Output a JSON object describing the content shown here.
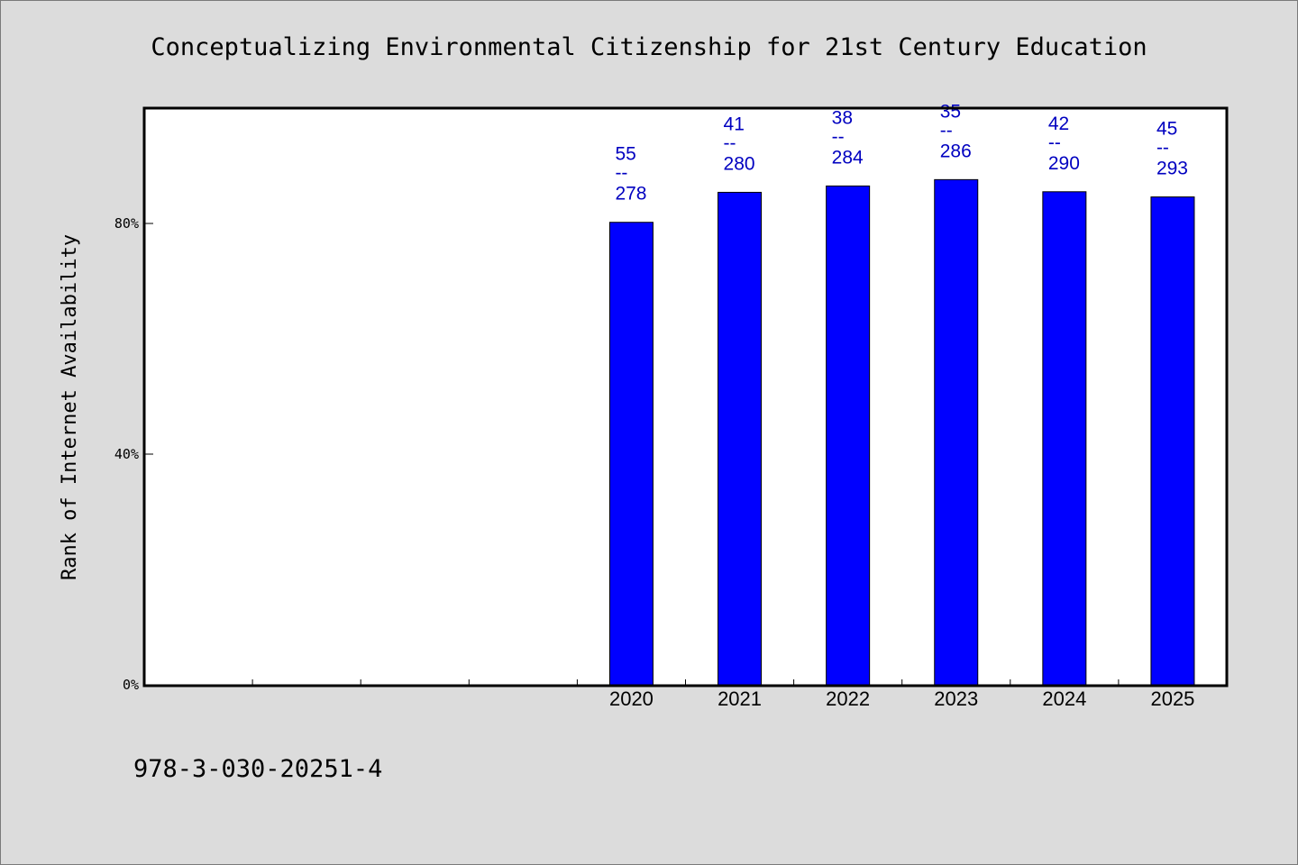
{
  "chart_data": {
    "type": "bar",
    "title": "Conceptualizing Environmental Citizenship for 21st Century Education",
    "ylabel": "Rank of Internet Availability",
    "xlabel": "",
    "categories": [
      "",
      "",
      "",
      "",
      "2020",
      "2021",
      "2022",
      "2023",
      "2024",
      "2025"
    ],
    "series": [
      {
        "values": [
          null,
          null,
          null,
          null,
          80.2,
          85.4,
          86.5,
          87.6,
          85.5,
          84.6
        ],
        "labels": [
          null,
          null,
          null,
          null,
          {
            "rank": "55",
            "sep": "--",
            "total": "278"
          },
          {
            "rank": "41",
            "sep": "--",
            "total": "280"
          },
          {
            "rank": "38",
            "sep": "--",
            "total": "284"
          },
          {
            "rank": "35",
            "sep": "--",
            "total": "286"
          },
          {
            "rank": "42",
            "sep": "--",
            "total": "290"
          },
          {
            "rank": "45",
            "sep": "--",
            "total": "293"
          }
        ]
      }
    ],
    "yticks": [
      {
        "value": 0,
        "label": "0%"
      },
      {
        "value": 40,
        "label": "40%"
      },
      {
        "value": 80,
        "label": "80%"
      }
    ],
    "ylim": [
      0,
      100
    ],
    "grid": false,
    "legend": "none",
    "colors": {
      "bar": "#0000ff",
      "label": "#0000c0",
      "background": "#dcdcdc",
      "plot_background": "#ffffff"
    }
  },
  "footer": {
    "isbn": "978-3-030-20251-4"
  }
}
